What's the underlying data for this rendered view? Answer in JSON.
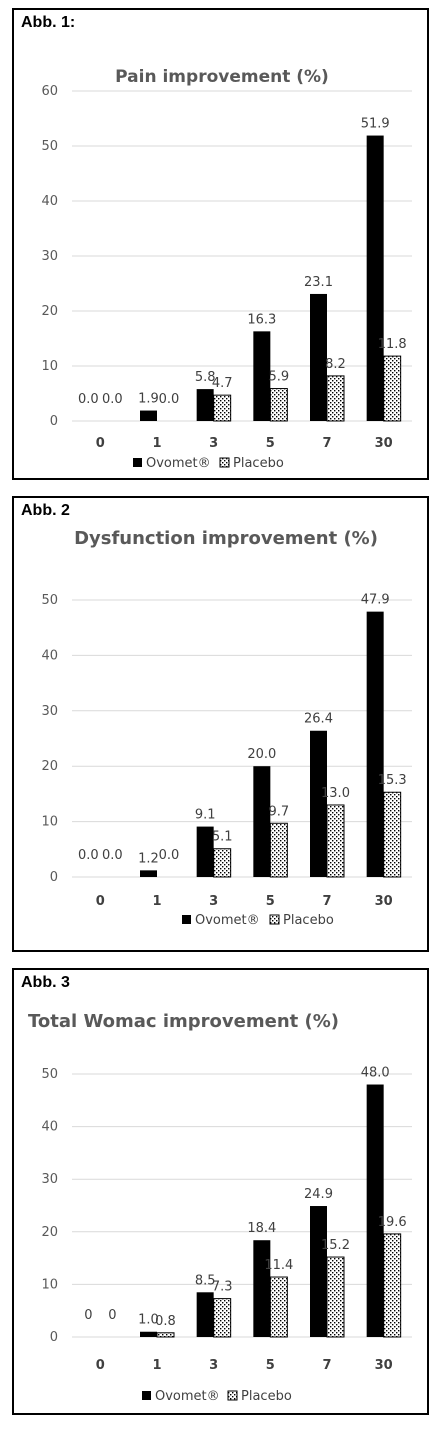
{
  "colors": {
    "ovomet": "#000000",
    "placebo_fill": "#ffffff",
    "placebo_dots": "#000000",
    "gridline": "#d9d9d9",
    "text": "#595959"
  },
  "chart_data": [
    {
      "type": "bar",
      "figure_label": "Abb. 1:",
      "title": "Pain improvement (%)",
      "categories": [
        "0",
        "1",
        "3",
        "5",
        "7",
        "30"
      ],
      "series": [
        {
          "name": "Ovomet®",
          "values": [
            0.0,
            1.9,
            5.8,
            16.3,
            23.1,
            51.9
          ],
          "labels": [
            "0.0",
            "1.9",
            "5.8",
            "16.3",
            "23.1",
            "51.9"
          ]
        },
        {
          "name": "Placebo",
          "values": [
            0.0,
            0.0,
            4.7,
            5.9,
            8.2,
            11.8
          ],
          "labels": [
            "0.0",
            "0.0",
            "4.7",
            "5.9",
            "8.2",
            "11.8"
          ]
        }
      ],
      "yticks": [
        "0",
        "10",
        "20",
        "30",
        "40",
        "50",
        "60"
      ],
      "ylim": [
        0,
        60
      ],
      "grid": true,
      "legend": "bottom"
    },
    {
      "type": "bar",
      "figure_label": "Abb. 2",
      "title": "Dysfunction improvement (%)",
      "categories": [
        "0",
        "1",
        "3",
        "5",
        "7",
        "30"
      ],
      "series": [
        {
          "name": "Ovomet®",
          "values": [
            0.0,
            1.2,
            9.1,
            20.0,
            26.4,
            47.9
          ],
          "labels": [
            "0.0",
            "1.2",
            "9.1",
            "20.0",
            "26.4",
            "47.9"
          ]
        },
        {
          "name": "Placebo",
          "values": [
            0.0,
            0.0,
            5.1,
            9.7,
            13.0,
            15.3
          ],
          "labels": [
            "0.0",
            "0.0",
            "5.1",
            "9.7",
            "13.0",
            "15.3"
          ]
        }
      ],
      "yticks": [
        "0",
        "10",
        "20",
        "30",
        "40",
        "50"
      ],
      "ylim": [
        0,
        50
      ],
      "grid": true,
      "legend": "bottom"
    },
    {
      "type": "bar",
      "figure_label": "Abb. 3",
      "title": "Total Womac improvement (%)",
      "categories": [
        "0",
        "1",
        "3",
        "5",
        "7",
        "30"
      ],
      "series": [
        {
          "name": "Ovomet®",
          "values": [
            0,
            1.0,
            8.5,
            18.4,
            24.9,
            48.0
          ],
          "labels": [
            "0",
            "1.0",
            "8.5",
            "18.4",
            "24.9",
            "48.0"
          ]
        },
        {
          "name": "Placebo",
          "values": [
            0,
            0.8,
            7.3,
            11.4,
            15.2,
            19.6
          ],
          "labels": [
            "0",
            "0.8",
            "7.3",
            "11.4",
            "15.2",
            "19.6"
          ]
        }
      ],
      "yticks": [
        "0",
        "10",
        "20",
        "30",
        "40",
        "50"
      ],
      "ylim": [
        0,
        50
      ],
      "grid": true,
      "legend": "bottom"
    }
  ]
}
